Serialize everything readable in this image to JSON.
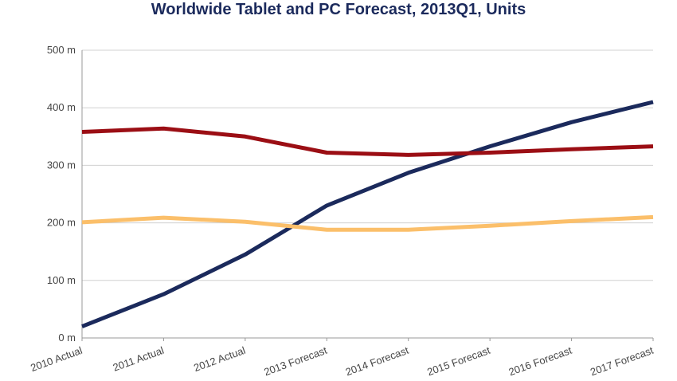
{
  "chart_data": {
    "type": "line",
    "title": "Worldwide Tablet and PC Forecast, 2013Q1, Units",
    "categories": [
      "2010 Actual",
      "2011 Actual",
      "2012 Actual",
      "2013 Forecast",
      "2014 Forecast",
      "2015 Forecast",
      "2016 Forecast",
      "2017 Forecast"
    ],
    "y_ticks": [
      "0 m",
      "100 m",
      "200 m",
      "300 m",
      "400 m",
      "500 m"
    ],
    "ylim": [
      0,
      500
    ],
    "grid": true,
    "series": [
      {
        "color": "#1b2a5c",
        "values": [
          20,
          76,
          145,
          230,
          287,
          333,
          375,
          410
        ]
      },
      {
        "color": "#9b0e14",
        "values": [
          358,
          364,
          350,
          322,
          318,
          322,
          328,
          333
        ]
      },
      {
        "color": "#fbbf6a",
        "values": [
          201,
          209,
          202,
          188,
          188,
          195,
          203,
          210
        ]
      }
    ]
  }
}
